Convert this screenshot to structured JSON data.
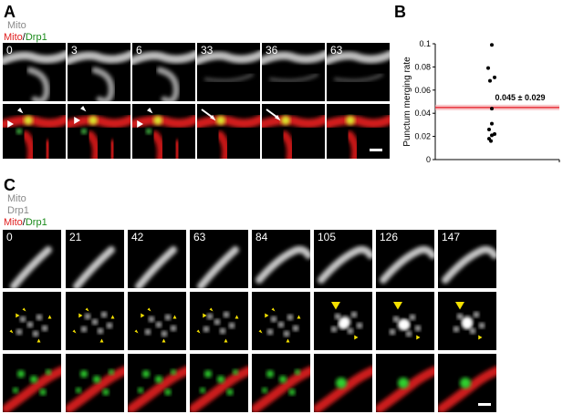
{
  "panel_a": {
    "letter": "A",
    "label_line1": "Mito",
    "label_line2_red": "Mito",
    "label_line2_sep": "/",
    "label_line2_green": "Drp1",
    "times": [
      "0",
      "3",
      "6",
      "33",
      "36",
      "63"
    ]
  },
  "panel_b": {
    "letter": "B"
  },
  "panel_c": {
    "letter": "C",
    "label_line1": "Mito",
    "label_line2": "Drp1",
    "label_line3_red": "Mito",
    "label_line3_sep": "/",
    "label_line3_green": "Drp1",
    "times": [
      "0",
      "21",
      "42",
      "63",
      "84",
      "105",
      "126",
      "147"
    ]
  },
  "chart_data": {
    "type": "scatter",
    "title": "",
    "ylabel": "Punctum merging rate",
    "xlabel": "",
    "ylim": [
      0,
      0.1
    ],
    "yticks": [
      "0",
      "0.02",
      "0.04",
      "0.06",
      "0.08",
      "0.1"
    ],
    "points": [
      0.099,
      0.079,
      0.071,
      0.068,
      0.044,
      0.031,
      0.026,
      0.022,
      0.021,
      0.018,
      0.016
    ],
    "mean_line": 0.045,
    "annotation": "0.045 ± 0.029",
    "colors": {
      "points": "#000000",
      "mean_line": "#e8303a"
    }
  }
}
